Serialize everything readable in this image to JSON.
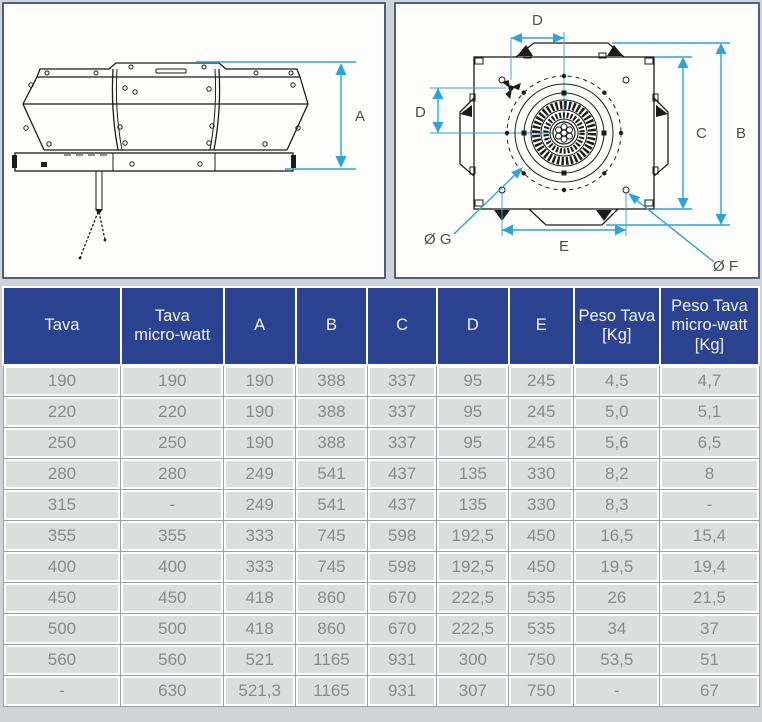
{
  "drawings": {
    "side_view": {
      "height_label": "A"
    },
    "top_view": {
      "width_top_label": "D",
      "offset_left_label": "D",
      "inner_height_label": "C",
      "outer_height_label": "B",
      "hole_span_label": "E",
      "bolt_circle_label": "Ø G",
      "hole_dia_label": "Ø F"
    }
  },
  "table": {
    "columns": [
      {
        "label": "Tava"
      },
      {
        "label": "Tava\nmicro-watt"
      },
      {
        "label": "A"
      },
      {
        "label": "B"
      },
      {
        "label": "C"
      },
      {
        "label": "D"
      },
      {
        "label": "E"
      },
      {
        "label": "Peso Tava\n[Kg]"
      },
      {
        "label": "Peso Tava\nmicro-watt\n[Kg]"
      }
    ],
    "rows": [
      [
        "190",
        "190",
        "190",
        "388",
        "337",
        "95",
        "245",
        "4,5",
        "4,7"
      ],
      [
        "220",
        "220",
        "190",
        "388",
        "337",
        "95",
        "245",
        "5,0",
        "5,1"
      ],
      [
        "250",
        "250",
        "190",
        "388",
        "337",
        "95",
        "245",
        "5,6",
        "6,5"
      ],
      [
        "280",
        "280",
        "249",
        "541",
        "437",
        "135",
        "330",
        "8,2",
        "8"
      ],
      [
        "315",
        "-",
        "249",
        "541",
        "437",
        "135",
        "330",
        "8,3",
        "-"
      ],
      [
        "355",
        "355",
        "333",
        "745",
        "598",
        "192,5",
        "450",
        "16,5",
        "15,4"
      ],
      [
        "400",
        "400",
        "333",
        "745",
        "598",
        "192,5",
        "450",
        "19,5",
        "19,4"
      ],
      [
        "450",
        "450",
        "418",
        "860",
        "670",
        "222,5",
        "535",
        "26",
        "21,5"
      ],
      [
        "500",
        "500",
        "418",
        "860",
        "670",
        "222,5",
        "535",
        "34",
        "37"
      ],
      [
        "560",
        "560",
        "521",
        "1165",
        "931",
        "300",
        "750",
        "53,5",
        "51"
      ],
      [
        "-",
        "630",
        "521,3",
        "1165",
        "931",
        "307",
        "750",
        "-",
        "67"
      ]
    ]
  },
  "colors": {
    "accent_dimension": "#2ba4d9",
    "header_background": "#2b4390",
    "panel_border": "#4c5f85",
    "row_background": "#dcdddd",
    "page_background": "#d0d3d6"
  }
}
